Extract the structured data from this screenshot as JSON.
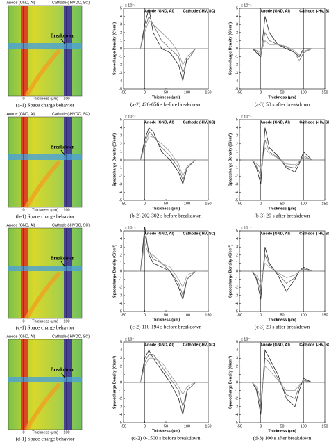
{
  "heatmaps": [
    {
      "anode": "Anode (GND, Al)",
      "cathode": "Cathode (-HVDC, SC)",
      "breakdown": "Breakdown",
      "xlabel": "Thickness (μm)",
      "xticks": [
        "0",
        "100"
      ],
      "caption": "(a-1) Space charge behavior"
    },
    {
      "anode": "Anode (GND, Al)",
      "cathode": "Cathode (-HVDC, SC)",
      "breakdown": "Breakdown",
      "xlabel": "Thickness (μm)",
      "xticks": [
        "0",
        "100"
      ],
      "caption": "(b-1) Space charge behavior"
    },
    {
      "anode": "Anode (GND, Al)",
      "cathode": "Cathode (-HVDC, SC)",
      "breakdown": "Breakdown",
      "xlabel": "Thickness (μm)",
      "xticks": [
        "0",
        "100"
      ],
      "caption": "(c-1) Space charge behavior"
    },
    {
      "anode": "Anode (GND, Al)",
      "cathode": "Cathode (-HVDC, SC)",
      "breakdown": "Breakdown",
      "xlabel": "Thickness (μm)",
      "xticks": [
        "0",
        "100"
      ],
      "caption": "(d-1) Space charge behavior"
    }
  ],
  "chart_data": [
    {
      "type": "line",
      "caption": "(a-2) 426-656 s before breakdown",
      "scale": "x 10⁻⁴",
      "anode": "Anode (GND, Al)",
      "cathode": "Cathode (-HV, SC)",
      "ylabel": "Spacecharge Density (C/cm³)",
      "xlabel": "Thickness (μm)",
      "xlim": [
        -50,
        150
      ],
      "xticks": [
        -50,
        0,
        50,
        100,
        150
      ],
      "ylim": [
        -5,
        5
      ],
      "yticks": [
        -5,
        -4,
        -3,
        -2,
        -1,
        0,
        1,
        2,
        3,
        4,
        5
      ],
      "x": [
        -20,
        -10,
        0,
        10,
        20,
        40,
        60,
        80,
        90,
        100,
        120,
        140
      ],
      "series": [
        {
          "color": "#222",
          "values": [
            0,
            0,
            3,
            5,
            2,
            0,
            -0.5,
            -2,
            -4,
            -1,
            0,
            0
          ]
        },
        {
          "color": "#666",
          "values": [
            0,
            0,
            2.5,
            4,
            3,
            1,
            0,
            -1,
            -3,
            -1.5,
            0,
            0
          ]
        },
        {
          "color": "#999",
          "values": [
            0,
            0,
            2,
            3.5,
            3,
            2,
            1,
            -0.5,
            -2,
            -1,
            0,
            0
          ]
        }
      ]
    },
    {
      "type": "line",
      "caption": "(a-3) 50 s after breakdown",
      "scale": "x 10⁻⁴",
      "anode": "Anode (GND, Al)",
      "cathode": "Cathode (-HV, SC)",
      "ylabel": "Spacecharge Density (C/cm³)",
      "xlabel": "Thickness (μm)",
      "xlim": [
        -50,
        150
      ],
      "xticks": [
        -50,
        0,
        50,
        100,
        150
      ],
      "ylim": [
        -5,
        5
      ],
      "yticks": [
        -5,
        -4,
        -3,
        -2,
        -1,
        0,
        1,
        2,
        3,
        4,
        5
      ],
      "x": [
        -20,
        -10,
        0,
        10,
        20,
        40,
        60,
        80,
        90,
        100,
        120,
        140
      ],
      "series": [
        {
          "color": "#222",
          "values": [
            0,
            -0.5,
            -1,
            4,
            2,
            0.5,
            0,
            -0.5,
            -1,
            0,
            0,
            0
          ]
        },
        {
          "color": "#666",
          "values": [
            0,
            -0.3,
            -0.8,
            2,
            1,
            0.5,
            0.2,
            -0.5,
            -1.5,
            -0.5,
            0,
            0
          ]
        },
        {
          "color": "#999",
          "values": [
            0,
            -0.2,
            -0.5,
            1,
            0.5,
            0.5,
            0.3,
            -0.3,
            -0.8,
            -0.3,
            0,
            0
          ]
        }
      ]
    },
    {
      "type": "line",
      "caption": "(b-2) 202-302 s before breakdown",
      "scale": "x 10⁻⁴",
      "anode": "Anode (GND, Al)",
      "cathode": "Cathode (-HV, SC)",
      "ylabel": "Spacecharge Density (C/cm³)",
      "xlabel": "Thickness (μm)",
      "xlim": [
        -50,
        150
      ],
      "xticks": [
        -50,
        0,
        50,
        100,
        150
      ],
      "ylim": [
        -5,
        5
      ],
      "yticks": [
        -5,
        -4,
        -3,
        -2,
        -1,
        0,
        1,
        2,
        3,
        4,
        5
      ],
      "x": [
        -20,
        -10,
        0,
        10,
        20,
        40,
        60,
        80,
        90,
        100,
        120,
        140
      ],
      "series": [
        {
          "color": "#222",
          "values": [
            0,
            0,
            2.5,
            4,
            3.5,
            1,
            0,
            -1.5,
            -3,
            -1,
            0,
            0
          ]
        },
        {
          "color": "#666",
          "values": [
            0,
            0,
            2,
            3.5,
            3,
            1.5,
            0.5,
            -1,
            -2.5,
            -1,
            0,
            0
          ]
        },
        {
          "color": "#999",
          "values": [
            0,
            0,
            1.5,
            3,
            2.8,
            2,
            1,
            -0.5,
            -2,
            -0.8,
            0,
            0
          ]
        }
      ]
    },
    {
      "type": "line",
      "caption": "(b-3) 20 s after breakdown",
      "scale": "x 10⁻⁴",
      "anode": "Anode (GND, Al)",
      "cathode": "Cathode (-HV, SC)",
      "ylabel": "Spacecharge Density (C/cm³)",
      "xlabel": "Thickness (μm)",
      "xlim": [
        -50,
        150
      ],
      "xticks": [
        -50,
        0,
        50,
        100,
        150
      ],
      "ylim": [
        -5,
        5
      ],
      "yticks": [
        -5,
        -4,
        -3,
        -2,
        -1,
        0,
        1,
        2,
        3,
        4,
        5
      ],
      "x": [
        -20,
        -10,
        0,
        10,
        20,
        40,
        60,
        80,
        90,
        100,
        120,
        140
      ],
      "series": [
        {
          "color": "#222",
          "values": [
            0,
            -1,
            -3,
            4,
            1.5,
            0.5,
            -1,
            -1.5,
            -0.5,
            1,
            0,
            0
          ]
        },
        {
          "color": "#666",
          "values": [
            0,
            -0.8,
            -2,
            2.5,
            1,
            0.3,
            -0.8,
            -1,
            -0.3,
            0.5,
            0,
            0
          ]
        },
        {
          "color": "#999",
          "values": [
            0,
            -0.5,
            -1,
            1.5,
            0.8,
            0.2,
            -0.5,
            -0.6,
            -0.2,
            0.3,
            0,
            0
          ]
        }
      ]
    },
    {
      "type": "line",
      "caption": "(c-2) 110-194 s before breakdown",
      "scale": "x 10⁻⁴",
      "anode": "Anode (GND, Al)",
      "cathode": "Cathode (-HV, SC)",
      "ylabel": "Spacecharge Density (C/cm³)",
      "xlabel": "Thickness (μm)",
      "xlim": [
        -50,
        150
      ],
      "xticks": [
        -50,
        0,
        50,
        100,
        150
      ],
      "ylim": [
        -5,
        5
      ],
      "yticks": [
        -5,
        -4,
        -3,
        -2,
        -1,
        0,
        1,
        2,
        3,
        4,
        5
      ],
      "x": [
        -20,
        -10,
        0,
        10,
        20,
        40,
        60,
        80,
        90,
        100,
        120,
        140
      ],
      "series": [
        {
          "color": "#222",
          "values": [
            0,
            0,
            5.5,
            2,
            1,
            0.5,
            0,
            -2,
            -3.5,
            -1,
            0,
            0
          ]
        },
        {
          "color": "#666",
          "values": [
            0,
            0,
            4.5,
            2.5,
            1.5,
            1,
            0,
            -1.5,
            -3,
            -1,
            0,
            0
          ]
        },
        {
          "color": "#999",
          "values": [
            0,
            0,
            3.5,
            2,
            2,
            1,
            0.5,
            -1,
            -2,
            -0.5,
            0,
            0
          ]
        }
      ]
    },
    {
      "type": "line",
      "caption": "(c-3) 20 s after breakdown",
      "scale": "x 10⁻⁴",
      "anode": "Anode (GND, Al)",
      "cathode": "Cathode (-HV, SC)",
      "ylabel": "Spacecharge Density (C/cm³)",
      "xlabel": "Thickness (μm)",
      "xlim": [
        -50,
        150
      ],
      "xticks": [
        -50,
        0,
        50,
        100,
        150
      ],
      "ylim": [
        -5,
        5
      ],
      "yticks": [
        -5,
        -4,
        -3,
        -2,
        -1,
        0,
        1,
        2,
        3,
        4,
        5
      ],
      "x": [
        -20,
        -10,
        0,
        10,
        20,
        40,
        60,
        80,
        90,
        100,
        120,
        140
      ],
      "series": [
        {
          "color": "#222",
          "values": [
            0,
            -1,
            -3.5,
            3,
            1,
            -0.5,
            -2.5,
            -1,
            0,
            0.5,
            0,
            0
          ]
        },
        {
          "color": "#666",
          "values": [
            0,
            -0.8,
            -2.5,
            2,
            0.8,
            -0.3,
            -1.5,
            -0.8,
            0,
            0.3,
            0,
            0
          ]
        },
        {
          "color": "#999",
          "values": [
            0,
            -0.5,
            -1.5,
            1,
            0.5,
            -0.2,
            -0.8,
            -0.5,
            0,
            0.2,
            0,
            0
          ]
        }
      ]
    },
    {
      "type": "line",
      "caption": "(d-2) 0-1500 s before breakdown",
      "scale": "x 10⁻⁴",
      "anode": "Anode (GND, Al)",
      "cathode": "Cathode (-HV, SC)",
      "ylabel": "Spacecharge Density (C/cm³)",
      "xlabel": "Thickness (μm)",
      "xlim": [
        -50,
        150
      ],
      "xticks": [
        -50,
        0,
        50,
        100,
        150
      ],
      "ylim": [
        -5,
        5
      ],
      "yticks": [
        -5,
        -4,
        -3,
        -2,
        -1,
        0,
        1,
        2,
        3,
        4,
        5
      ],
      "x": [
        -20,
        -10,
        0,
        10,
        20,
        40,
        60,
        80,
        90,
        100,
        120,
        140
      ],
      "series": [
        {
          "color": "#222",
          "values": [
            0,
            0,
            3,
            4,
            3,
            1.5,
            0,
            -2,
            -4,
            -1,
            0,
            0
          ]
        },
        {
          "color": "#666",
          "values": [
            0,
            0,
            2.5,
            3.5,
            3.5,
            2,
            0.5,
            -1,
            -3,
            -1,
            0,
            0
          ]
        },
        {
          "color": "#999",
          "values": [
            0,
            0,
            2,
            3,
            3,
            2.5,
            1,
            -0.5,
            -1.5,
            -0.5,
            0,
            0
          ]
        }
      ]
    },
    {
      "type": "line",
      "caption": "(d-3) 100 s after breakdown",
      "scale": "x 10⁻⁴",
      "anode": "Anode (GND, Al)",
      "cathode": "Cathode (-HV, SC)",
      "ylabel": "Spacecharge Density (C/cm³)",
      "xlabel": "Thickness (μm)",
      "xlim": [
        -50,
        150
      ],
      "xticks": [
        -50,
        0,
        50,
        100,
        150
      ],
      "ylim": [
        -5,
        5
      ],
      "yticks": [
        -5,
        -4,
        -3,
        -2,
        -1,
        0,
        1,
        2,
        3,
        4,
        5
      ],
      "x": [
        -20,
        -10,
        0,
        10,
        20,
        40,
        60,
        80,
        90,
        100,
        120,
        140
      ],
      "series": [
        {
          "color": "#222",
          "values": [
            0,
            -1,
            -4,
            4,
            3,
            1,
            -2,
            -3,
            -1,
            0.5,
            0,
            0
          ]
        },
        {
          "color": "#666",
          "values": [
            0,
            -0.8,
            -3,
            3,
            2.5,
            0.5,
            -1.5,
            -2,
            -0.5,
            0.3,
            0,
            0
          ]
        },
        {
          "color": "#999",
          "values": [
            0,
            -0.5,
            -2,
            2,
            1.5,
            0.3,
            -1,
            -1,
            -0.3,
            0.2,
            0,
            0
          ]
        }
      ]
    }
  ]
}
